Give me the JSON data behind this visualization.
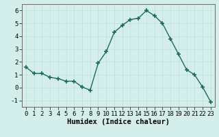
{
  "x": [
    0,
    1,
    2,
    3,
    4,
    5,
    6,
    7,
    8,
    9,
    10,
    11,
    12,
    13,
    14,
    15,
    16,
    17,
    18,
    19,
    20,
    21,
    22,
    23
  ],
  "y": [
    1.6,
    1.1,
    1.1,
    0.8,
    0.7,
    0.5,
    0.5,
    0.05,
    -0.2,
    1.9,
    2.8,
    4.3,
    4.85,
    5.3,
    5.4,
    6.0,
    5.6,
    5.0,
    3.8,
    2.6,
    1.4,
    1.0,
    0.05,
    -1.1
  ],
  "line_color": "#1a6b5a",
  "marker": "+",
  "marker_size": 4,
  "marker_lw": 1.2,
  "background_color": "#d4eeeb",
  "grid_color": "#c0ddd9",
  "xlabel": "Humidex (Indice chaleur)",
  "xlim": [
    -0.5,
    23.5
  ],
  "ylim": [
    -1.5,
    6.5
  ],
  "yticks": [
    -1,
    0,
    1,
    2,
    3,
    4,
    5,
    6
  ],
  "xticks": [
    0,
    1,
    2,
    3,
    4,
    5,
    6,
    7,
    8,
    9,
    10,
    11,
    12,
    13,
    14,
    15,
    16,
    17,
    18,
    19,
    20,
    21,
    22,
    23
  ],
  "xlabel_fontsize": 7.5,
  "tick_fontsize": 6.5,
  "linewidth": 1.0
}
